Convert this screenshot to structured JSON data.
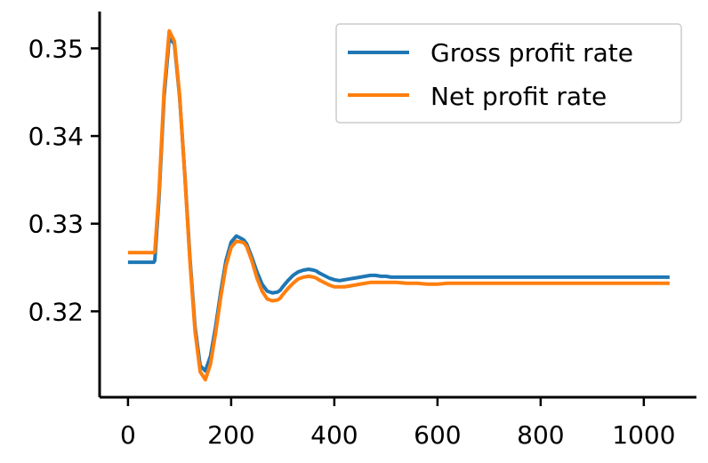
{
  "chart_data": {
    "type": "line",
    "title": "",
    "xlabel": "",
    "ylabel": "",
    "xlim": [
      -55,
      1102
    ],
    "ylim": [
      0.3102,
      0.3542
    ],
    "xticks": [
      0,
      200,
      400,
      600,
      800,
      1000
    ],
    "xtick_labels": [
      "0",
      "200",
      "400",
      "600",
      "800",
      "1000"
    ],
    "yticks": [
      0.32,
      0.33,
      0.34,
      0.35
    ],
    "ytick_labels": [
      "0.32",
      "0.33",
      "0.34",
      "0.35"
    ],
    "grid": false,
    "legend_position": "upper-right",
    "series": [
      {
        "name": "Gross profit rate",
        "color": "#1f77b4",
        "x": [
          0,
          50,
          52,
          60,
          70,
          80,
          90,
          100,
          110,
          120,
          130,
          140,
          150,
          160,
          170,
          180,
          190,
          200,
          210,
          220,
          225,
          230,
          240,
          250,
          260,
          270,
          280,
          290,
          295,
          300,
          310,
          320,
          330,
          340,
          350,
          360,
          365,
          370,
          380,
          390,
          400,
          410,
          420,
          430,
          440,
          450,
          460,
          470,
          480,
          490,
          500,
          510,
          520,
          540,
          560,
          580,
          600,
          620,
          640,
          660,
          680,
          700,
          750,
          800,
          850,
          900,
          950,
          1000,
          1050
        ],
        "y": [
          0.3256,
          0.3256,
          0.3258,
          0.3328,
          0.3445,
          0.3512,
          0.3505,
          0.3445,
          0.3358,
          0.3262,
          0.3182,
          0.3138,
          0.3132,
          0.3149,
          0.3183,
          0.3223,
          0.3258,
          0.3279,
          0.3286,
          0.3283,
          0.3281,
          0.3277,
          0.3262,
          0.3245,
          0.3231,
          0.3223,
          0.3221,
          0.3222,
          0.3224,
          0.3228,
          0.3235,
          0.3241,
          0.3245,
          0.3247,
          0.3248,
          0.3247,
          0.3246,
          0.3244,
          0.3241,
          0.3238,
          0.3236,
          0.3235,
          0.3236,
          0.3237,
          0.3238,
          0.3239,
          0.324,
          0.3241,
          0.3241,
          0.324,
          0.324,
          0.3239,
          0.3239,
          0.3239,
          0.3239,
          0.3239,
          0.3239,
          0.3239,
          0.3239,
          0.3239,
          0.3239,
          0.3239,
          0.3239,
          0.3239,
          0.3239,
          0.3239,
          0.3239,
          0.3239,
          0.3239
        ]
      },
      {
        "name": "Net profit rate",
        "color": "#ff7f0e",
        "x": [
          0,
          50,
          52,
          60,
          70,
          80,
          90,
          100,
          110,
          120,
          130,
          140,
          150,
          160,
          170,
          180,
          190,
          200,
          210,
          220,
          225,
          230,
          240,
          250,
          260,
          270,
          280,
          290,
          295,
          300,
          310,
          320,
          330,
          340,
          350,
          360,
          365,
          370,
          380,
          390,
          400,
          410,
          420,
          430,
          440,
          450,
          460,
          470,
          480,
          490,
          500,
          510,
          520,
          540,
          560,
          580,
          600,
          620,
          640,
          660,
          680,
          700,
          750,
          800,
          850,
          900,
          950,
          1000,
          1050
        ],
        "y": [
          0.3267,
          0.3267,
          0.3268,
          0.3335,
          0.3452,
          0.352,
          0.3508,
          0.3447,
          0.3356,
          0.3258,
          0.3177,
          0.3131,
          0.3122,
          0.314,
          0.3176,
          0.3217,
          0.3252,
          0.3273,
          0.328,
          0.3279,
          0.3278,
          0.3274,
          0.3258,
          0.3238,
          0.3223,
          0.3214,
          0.3212,
          0.3213,
          0.3215,
          0.3219,
          0.3226,
          0.3232,
          0.3237,
          0.3239,
          0.324,
          0.3239,
          0.3238,
          0.3236,
          0.3233,
          0.323,
          0.3228,
          0.3228,
          0.3228,
          0.3229,
          0.323,
          0.3231,
          0.3232,
          0.3233,
          0.3233,
          0.3233,
          0.3233,
          0.3233,
          0.3233,
          0.3232,
          0.3232,
          0.3231,
          0.3231,
          0.3232,
          0.3232,
          0.3232,
          0.3232,
          0.3232,
          0.3232,
          0.3232,
          0.3232,
          0.3232,
          0.3232,
          0.3232,
          0.3232
        ]
      }
    ]
  }
}
